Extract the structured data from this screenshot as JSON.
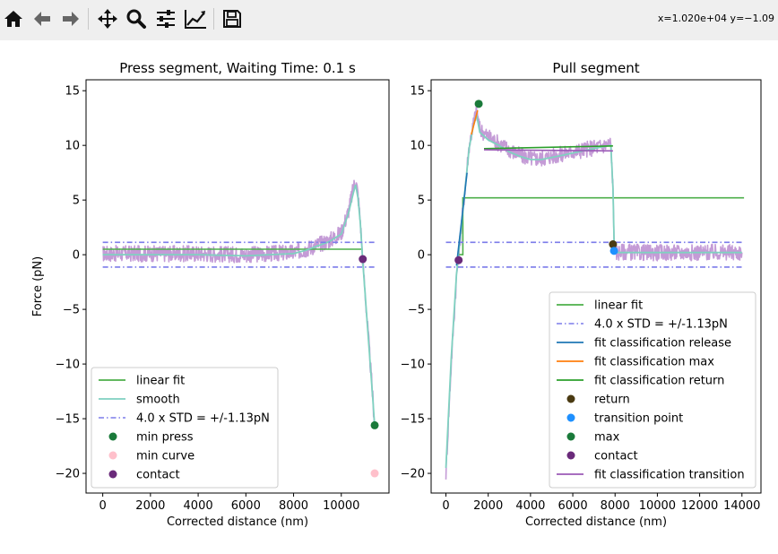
{
  "toolbar": {
    "buttons": [
      {
        "name": "home-icon",
        "label": "Home"
      },
      {
        "name": "back-icon",
        "label": "Back"
      },
      {
        "name": "forward-icon",
        "label": "Forward"
      },
      {
        "name": "pan-icon",
        "label": "Pan"
      },
      {
        "name": "zoom-icon",
        "label": "Zoom"
      },
      {
        "name": "configure-subplots-icon",
        "label": "Subplots"
      },
      {
        "name": "edit-axis-icon",
        "label": "Customize"
      },
      {
        "name": "save-icon",
        "label": "Save"
      }
    ],
    "coords": "x=1.020e+04 y=−1.09"
  },
  "chart_data": [
    {
      "type": "line",
      "title": "Press segment, Waiting Time: 0.1 s",
      "xlabel": "Corrected distance (nm)",
      "ylabel": "Force (pN)",
      "xlim": [
        -700,
        12000
      ],
      "ylim": [
        -21.8,
        16
      ],
      "xticks": [
        0,
        2000,
        4000,
        6000,
        8000,
        10000
      ],
      "yticks": [
        -20,
        -15,
        -10,
        -5,
        0,
        5,
        10,
        15
      ],
      "tick_labels_x": [
        "0",
        "2000",
        "4000",
        "6000",
        "8000",
        "10000"
      ],
      "tick_labels_y": [
        "−20",
        "−15",
        "−10",
        "−5",
        "0",
        "5",
        "10",
        "15"
      ],
      "legend_position": "lower-left",
      "raw_curve": {
        "color": "#c49bd6",
        "x": [
          0,
          2000,
          4000,
          6000,
          8000,
          8500,
          9000,
          9500,
          10000,
          10300,
          10500,
          10600,
          10700,
          10800,
          10900,
          11000,
          11100,
          11200,
          11300,
          11400
        ],
        "y": [
          0.1,
          0.1,
          0.1,
          0.0,
          0.2,
          0.5,
          0.9,
          1.3,
          2.0,
          4.0,
          6.0,
          6.9,
          5.5,
          3.0,
          -0.5,
          -3.5,
          -6.5,
          -9.5,
          -12.5,
          -15.6
        ]
      },
      "series": [
        {
          "name": "linear fit",
          "kind": "line",
          "color": "#4daf4a",
          "x": [
            0,
            10900
          ],
          "y": [
            0.5,
            0.5
          ]
        },
        {
          "name": "smooth",
          "kind": "line",
          "color": "#7fd1c0",
          "x": [
            0,
            2000,
            4000,
            6000,
            8000,
            8500,
            9000,
            9500,
            10000,
            10300,
            10500,
            10600,
            10700,
            10800,
            10900,
            11000,
            11100,
            11200,
            11300,
            11400
          ],
          "y": [
            0.0,
            0.0,
            0.0,
            -0.1,
            0.1,
            0.4,
            0.8,
            1.2,
            1.9,
            3.8,
            5.6,
            6.4,
            5.2,
            2.8,
            -0.6,
            -3.6,
            -6.6,
            -9.6,
            -12.6,
            -15.6
          ]
        },
        {
          "name": "4.0 x STD = +/-1.13pN",
          "kind": "dashdot",
          "color": "#7b7bea",
          "x": [
            0,
            11400
          ],
          "y_levels": [
            1.13,
            -1.13
          ]
        },
        {
          "name": "min press",
          "kind": "point",
          "color": "#1a7a3a",
          "x": [
            11400
          ],
          "y": [
            -15.6
          ]
        },
        {
          "name": "min curve",
          "kind": "point",
          "color": "#ffc0cb",
          "x": [
            11400
          ],
          "y": [
            -20
          ]
        },
        {
          "name": "contact",
          "kind": "point",
          "color": "#6a2a7a",
          "x": [
            10900
          ],
          "y": [
            -0.4
          ]
        }
      ]
    },
    {
      "type": "line",
      "title": "Pull segment",
      "xlabel": "Corrected distance (nm)",
      "ylabel": "",
      "xlim": [
        -700,
        14900
      ],
      "ylim": [
        -21.8,
        16
      ],
      "xticks": [
        0,
        2000,
        4000,
        6000,
        8000,
        10000,
        12000,
        14000
      ],
      "yticks": [
        -20,
        -15,
        -10,
        -5,
        0,
        5,
        10,
        15
      ],
      "tick_labels_x": [
        "0",
        "2000",
        "4000",
        "6000",
        "8000",
        "10000",
        "12000",
        "14000"
      ],
      "tick_labels_y": [
        "−20",
        "−15",
        "−10",
        "−5",
        "0",
        "5",
        "10",
        "15"
      ],
      "legend_position": "lower-right",
      "raw_curve": {
        "color": "#c49bd6",
        "x": [
          0,
          250,
          500,
          800,
          1100,
          1300,
          1450,
          1600,
          2000,
          2500,
          3000,
          3500,
          4000,
          4500,
          5000,
          5500,
          6000,
          6500,
          7000,
          7500,
          7800,
          7900,
          7950,
          8000,
          8500,
          9000,
          10000,
          11000,
          12000,
          13000,
          14000
        ],
        "y": [
          -20,
          -10,
          -2,
          4,
          10,
          12,
          13.3,
          11.5,
          10.8,
          10.2,
          9.6,
          9.1,
          8.8,
          8.8,
          9.0,
          9.2,
          9.4,
          9.6,
          9.8,
          10.0,
          10.2,
          6,
          1.5,
          0.2,
          0.3,
          0.2,
          0.2,
          0.2,
          0.2,
          0.2,
          0.2
        ]
      },
      "series": [
        {
          "name": "linear fit",
          "kind": "line",
          "color": "#4daf4a",
          "x": [
            600,
            800,
            800,
            14100
          ],
          "y": [
            0,
            0,
            5.2,
            5.2
          ]
        },
        {
          "name": "smooth",
          "kind": "line",
          "color": "#7fd1c0",
          "in_legend": false,
          "x": [
            0,
            250,
            500,
            800,
            1100,
            1300,
            1450,
            1600,
            2000,
            2500,
            3000,
            3500,
            4000,
            4500,
            5000,
            5500,
            6000,
            6500,
            7000,
            7500,
            7800,
            7900,
            7950,
            8000,
            8500,
            9000,
            10000,
            11000,
            12000,
            13000,
            14000
          ],
          "y": [
            -19.5,
            -9.5,
            -1.8,
            4,
            9.8,
            11.8,
            12.8,
            11.2,
            10.5,
            10.0,
            9.4,
            9.0,
            8.7,
            8.7,
            8.9,
            9.1,
            9.3,
            9.5,
            9.7,
            9.9,
            10.0,
            6,
            1.3,
            0.2,
            0.2,
            0.2,
            0.2,
            0.2,
            0.2,
            0.2,
            0.2
          ]
        },
        {
          "name": "4.0 x STD = +/-1.13pN",
          "kind": "dashdot",
          "color": "#7b7bea",
          "x": [
            0,
            14100
          ],
          "y_levels": [
            1.13,
            -1.13
          ]
        },
        {
          "name": "fit classification release",
          "kind": "line",
          "color": "#1f77b4",
          "x": [
            500,
            1000
          ],
          "y": [
            -1,
            7.5
          ]
        },
        {
          "name": "fit classification max",
          "kind": "line",
          "color": "#ff7f0e",
          "x": [
            1200,
            1500
          ],
          "y": [
            11,
            13.2
          ]
        },
        {
          "name": "fit classification return",
          "kind": "line",
          "color": "#2ca02c",
          "x": [
            1800,
            7900
          ],
          "y": [
            9.7,
            9.95
          ]
        },
        {
          "name": "return",
          "kind": "point",
          "color": "#4a3a12",
          "x": [
            7900
          ],
          "y": [
            0.95
          ]
        },
        {
          "name": "transition point",
          "kind": "point",
          "color": "#1e90ff",
          "x": [
            7950
          ],
          "y": [
            0.35
          ]
        },
        {
          "name": "max",
          "kind": "point",
          "color": "#1a7a3a",
          "x": [
            1550
          ],
          "y": [
            13.8
          ]
        },
        {
          "name": "contact",
          "kind": "point",
          "color": "#6a2a7a",
          "x": [
            600
          ],
          "y": [
            -0.5
          ]
        },
        {
          "name": "fit classification transition",
          "kind": "line",
          "color": "#9b59b6",
          "x": [
            1800,
            7900
          ],
          "y": [
            9.6,
            9.5
          ]
        }
      ]
    }
  ]
}
